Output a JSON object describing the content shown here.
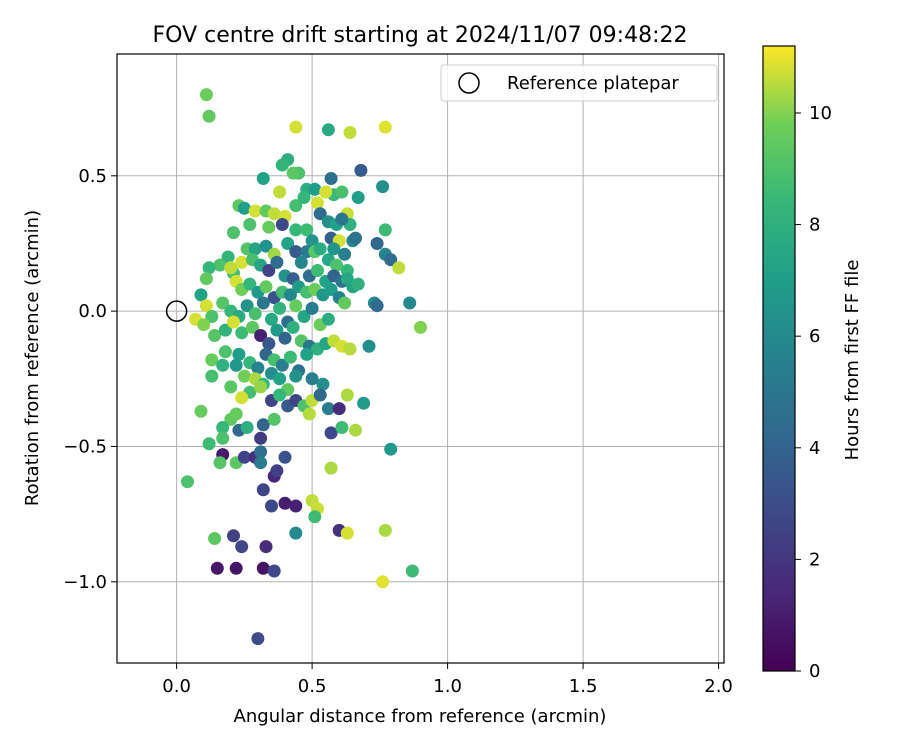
{
  "chart_data": {
    "type": "scatter",
    "title": "FOV centre drift starting at 2024/11/07 09:48:22",
    "xlabel": "Angular distance from reference (arcmin)",
    "ylabel": "Rotation from reference (arcmin)",
    "xlim": [
      -0.22,
      2.02
    ],
    "ylim": [
      -1.3,
      0.95
    ],
    "xticks": [
      0.0,
      0.5,
      1.0,
      1.5,
      2.0
    ],
    "xtick_labels": [
      "0.0",
      "0.5",
      "1.0",
      "1.5",
      "2.0"
    ],
    "yticks": [
      -1.0,
      -0.5,
      0.0,
      0.5
    ],
    "ytick_labels": [
      "−1.0",
      "−0.5",
      "0.0",
      "0.5"
    ],
    "grid": true,
    "legend": {
      "position": "top-right",
      "entries": [
        "Reference platepar"
      ]
    },
    "reference_point": {
      "x": 0.0,
      "y": 0.0,
      "label": "Reference platepar",
      "marker": "open-circle"
    },
    "colorbar": {
      "label": "Hours from first FF file",
      "range": [
        0,
        11.2
      ],
      "ticks": [
        0,
        2,
        4,
        6,
        8,
        10
      ],
      "tick_labels": [
        "0",
        "2",
        "4",
        "6",
        "8",
        "10"
      ],
      "colormap": "viridis"
    },
    "series": [
      {
        "columns": [
          "x",
          "y",
          "hours"
        ],
        "points": [
          [
            0.11,
            0.8,
            9.7
          ],
          [
            0.12,
            0.72,
            9.5
          ],
          [
            0.44,
            0.68,
            10.8
          ],
          [
            0.56,
            0.67,
            7.6
          ],
          [
            0.64,
            0.66,
            10.6
          ],
          [
            0.77,
            0.68,
            10.9
          ],
          [
            0.41,
            0.56,
            7.9
          ],
          [
            0.45,
            0.51,
            9.0
          ],
          [
            0.39,
            0.54,
            8.3
          ],
          [
            0.32,
            0.49,
            7.2
          ],
          [
            0.38,
            0.44,
            10.6
          ],
          [
            0.48,
            0.45,
            7.8
          ],
          [
            0.51,
            0.45,
            7.0
          ],
          [
            0.58,
            0.43,
            8.5
          ],
          [
            0.61,
            0.44,
            8.9
          ],
          [
            0.67,
            0.42,
            7.0
          ],
          [
            0.68,
            0.52,
            3.6
          ],
          [
            0.57,
            0.49,
            4.6
          ],
          [
            0.76,
            0.46,
            6.3
          ],
          [
            0.43,
            0.51,
            9.3
          ],
          [
            0.23,
            0.39,
            9.4
          ],
          [
            0.25,
            0.38,
            7.0
          ],
          [
            0.29,
            0.37,
            10.8
          ],
          [
            0.33,
            0.37,
            9.5
          ],
          [
            0.36,
            0.36,
            10.6
          ],
          [
            0.4,
            0.35,
            10.8
          ],
          [
            0.44,
            0.39,
            8.8
          ],
          [
            0.47,
            0.42,
            8.4
          ],
          [
            0.52,
            0.4,
            10.8
          ],
          [
            0.55,
            0.44,
            10.8
          ],
          [
            0.53,
            0.36,
            4.4
          ],
          [
            0.56,
            0.33,
            6.3
          ],
          [
            0.59,
            0.32,
            7.2
          ],
          [
            0.63,
            0.36,
            10.7
          ],
          [
            0.64,
            0.32,
            8.0
          ],
          [
            0.61,
            0.34,
            5.0
          ],
          [
            0.39,
            0.32,
            2.8
          ],
          [
            0.34,
            0.31,
            9.6
          ],
          [
            0.27,
            0.32,
            9.0
          ],
          [
            0.21,
            0.29,
            9.0
          ],
          [
            0.44,
            0.3,
            8.4
          ],
          [
            0.48,
            0.3,
            8.6
          ],
          [
            0.5,
            0.26,
            6.5
          ],
          [
            0.57,
            0.27,
            3.8
          ],
          [
            0.6,
            0.26,
            10.8
          ],
          [
            0.65,
            0.26,
            5.8
          ],
          [
            0.66,
            0.27,
            4.8
          ],
          [
            0.74,
            0.25,
            4.2
          ],
          [
            0.77,
            0.3,
            8.6
          ],
          [
            0.77,
            0.21,
            5.8
          ],
          [
            0.79,
            0.19,
            4.4
          ],
          [
            0.82,
            0.16,
            10.6
          ],
          [
            0.26,
            0.23,
            9.2
          ],
          [
            0.29,
            0.23,
            7.4
          ],
          [
            0.33,
            0.24,
            6.5
          ],
          [
            0.36,
            0.21,
            10.3
          ],
          [
            0.41,
            0.25,
            7.2
          ],
          [
            0.44,
            0.22,
            3.6
          ],
          [
            0.48,
            0.22,
            5.2
          ],
          [
            0.51,
            0.22,
            9.3
          ],
          [
            0.53,
            0.23,
            7.8
          ],
          [
            0.58,
            0.23,
            6.6
          ],
          [
            0.62,
            0.21,
            5.4
          ],
          [
            0.56,
            0.19,
            7.5
          ],
          [
            0.59,
            0.17,
            9.0
          ],
          [
            0.63,
            0.15,
            8.4
          ],
          [
            0.19,
            0.2,
            8.3
          ],
          [
            0.16,
            0.17,
            9.0
          ],
          [
            0.12,
            0.16,
            8.4
          ],
          [
            0.11,
            0.12,
            9.5
          ],
          [
            0.21,
            0.14,
            8.8
          ],
          [
            0.24,
            0.18,
            10.8
          ],
          [
            0.28,
            0.19,
            8.9
          ],
          [
            0.31,
            0.17,
            7.4
          ],
          [
            0.34,
            0.15,
            2.6
          ],
          [
            0.37,
            0.18,
            4.4
          ],
          [
            0.4,
            0.13,
            6.5
          ],
          [
            0.43,
            0.12,
            3.8
          ],
          [
            0.46,
            0.18,
            5.8
          ],
          [
            0.49,
            0.13,
            4.4
          ],
          [
            0.52,
            0.15,
            8.6
          ],
          [
            0.55,
            0.11,
            7.2
          ],
          [
            0.58,
            0.13,
            4.0
          ],
          [
            0.61,
            0.11,
            4.8
          ],
          [
            0.63,
            0.12,
            7.6
          ],
          [
            0.65,
            0.09,
            7.4
          ],
          [
            0.67,
            0.1,
            8.0
          ],
          [
            0.2,
            0.16,
            10.6
          ],
          [
            0.22,
            0.11,
            10.8
          ],
          [
            0.24,
            0.08,
            9.8
          ],
          [
            0.27,
            0.1,
            8.4
          ],
          [
            0.3,
            0.07,
            6.8
          ],
          [
            0.33,
            0.09,
            9.5
          ],
          [
            0.36,
            0.05,
            3.3
          ],
          [
            0.39,
            0.07,
            8.7
          ],
          [
            0.42,
            0.06,
            5.8
          ],
          [
            0.45,
            0.09,
            6.9
          ],
          [
            0.48,
            0.07,
            8.8
          ],
          [
            0.51,
            0.08,
            9.7
          ],
          [
            0.54,
            0.06,
            6.6
          ],
          [
            0.57,
            0.08,
            7.0
          ],
          [
            0.6,
            0.05,
            5.6
          ],
          [
            0.62,
            0.03,
            9.5
          ],
          [
            0.73,
            0.03,
            6.0
          ],
          [
            0.74,
            0.02,
            4.4
          ],
          [
            0.86,
            0.03,
            6.0
          ],
          [
            0.9,
            -0.06,
            10.0
          ],
          [
            0.09,
            0.06,
            7.2
          ],
          [
            0.11,
            0.02,
            10.8
          ],
          [
            0.13,
            -0.02,
            9.0
          ],
          [
            0.17,
            0.03,
            9.2
          ],
          [
            0.2,
            0.0,
            8.4
          ],
          [
            0.23,
            -0.02,
            7.6
          ],
          [
            0.26,
            0.02,
            6.4
          ],
          [
            0.29,
            -0.01,
            8.9
          ],
          [
            0.32,
            0.03,
            5.0
          ],
          [
            0.35,
            -0.03,
            7.6
          ],
          [
            0.38,
            0.01,
            8.2
          ],
          [
            0.41,
            -0.04,
            4.6
          ],
          [
            0.44,
            0.02,
            9.6
          ],
          [
            0.47,
            -0.02,
            7.4
          ],
          [
            0.5,
            0.01,
            5.2
          ],
          [
            0.53,
            -0.05,
            9.7
          ],
          [
            0.56,
            -0.03,
            7.8
          ],
          [
            0.07,
            -0.03,
            10.8
          ],
          [
            0.1,
            -0.05,
            10.0
          ],
          [
            0.14,
            -0.09,
            9.2
          ],
          [
            0.18,
            -0.07,
            8.2
          ],
          [
            0.21,
            -0.04,
            10.8
          ],
          [
            0.24,
            -0.08,
            8.6
          ],
          [
            0.28,
            -0.06,
            9.4
          ],
          [
            0.31,
            -0.09,
            1.2
          ],
          [
            0.34,
            -0.12,
            3.4
          ],
          [
            0.37,
            -0.07,
            6.8
          ],
          [
            0.4,
            -0.1,
            4.0
          ],
          [
            0.43,
            -0.06,
            8.0
          ],
          [
            0.46,
            -0.11,
            9.2
          ],
          [
            0.49,
            -0.13,
            5.0
          ],
          [
            0.52,
            -0.14,
            8.0
          ],
          [
            0.55,
            -0.12,
            7.4
          ],
          [
            0.58,
            -0.11,
            10.6
          ],
          [
            0.61,
            -0.13,
            10.8
          ],
          [
            0.64,
            -0.14,
            10.5
          ],
          [
            0.71,
            -0.13,
            6.2
          ],
          [
            0.13,
            -0.18,
            9.6
          ],
          [
            0.18,
            -0.15,
            9.0
          ],
          [
            0.23,
            -0.16,
            7.0
          ],
          [
            0.27,
            -0.19,
            8.4
          ],
          [
            0.3,
            -0.21,
            5.6
          ],
          [
            0.33,
            -0.16,
            4.0
          ],
          [
            0.36,
            -0.18,
            8.8
          ],
          [
            0.39,
            -0.2,
            5.4
          ],
          [
            0.42,
            -0.17,
            8.6
          ],
          [
            0.45,
            -0.22,
            4.8
          ],
          [
            0.48,
            -0.16,
            7.2
          ],
          [
            0.13,
            -0.24,
            8.8
          ],
          [
            0.17,
            -0.2,
            8.0
          ],
          [
            0.22,
            -0.2,
            6.6
          ],
          [
            0.25,
            -0.24,
            9.8
          ],
          [
            0.29,
            -0.25,
            10.4
          ],
          [
            0.32,
            -0.27,
            8.4
          ],
          [
            0.35,
            -0.23,
            6.2
          ],
          [
            0.38,
            -0.25,
            7.2
          ],
          [
            0.41,
            -0.29,
            9.4
          ],
          [
            0.44,
            -0.24,
            6.4
          ],
          [
            0.5,
            -0.25,
            5.4
          ],
          [
            0.54,
            -0.27,
            6.2
          ],
          [
            0.2,
            -0.28,
            9.3
          ],
          [
            0.27,
            -0.3,
            8.8
          ],
          [
            0.31,
            -0.28,
            10.2
          ],
          [
            0.35,
            -0.33,
            2.6
          ],
          [
            0.38,
            -0.31,
            8.4
          ],
          [
            0.41,
            -0.35,
            3.6
          ],
          [
            0.44,
            -0.33,
            2.6
          ],
          [
            0.47,
            -0.35,
            9.0
          ],
          [
            0.5,
            -0.33,
            10.6
          ],
          [
            0.53,
            -0.31,
            4.2
          ],
          [
            0.56,
            -0.36,
            5.4
          ],
          [
            0.6,
            -0.36,
            1.6
          ],
          [
            0.63,
            -0.31,
            10.4
          ],
          [
            0.69,
            -0.34,
            6.8
          ],
          [
            0.24,
            -0.32,
            10.8
          ],
          [
            0.09,
            -0.37,
            9.6
          ],
          [
            0.2,
            -0.4,
            9.4
          ],
          [
            0.17,
            -0.43,
            8.4
          ],
          [
            0.22,
            -0.38,
            9.6
          ],
          [
            0.32,
            -0.42,
            4.0
          ],
          [
            0.36,
            -0.4,
            9.2
          ],
          [
            0.49,
            -0.38,
            10.5
          ],
          [
            0.12,
            -0.49,
            8.6
          ],
          [
            0.17,
            -0.47,
            9.0
          ],
          [
            0.23,
            -0.44,
            4.2
          ],
          [
            0.26,
            -0.43,
            8.0
          ],
          [
            0.31,
            -0.47,
            2.2
          ],
          [
            0.57,
            -0.45,
            2.8
          ],
          [
            0.61,
            -0.43,
            8.6
          ],
          [
            0.66,
            -0.44,
            10.4
          ],
          [
            0.79,
            -0.51,
            6.8
          ],
          [
            0.17,
            -0.53,
            0.9
          ],
          [
            0.22,
            -0.56,
            9.4
          ],
          [
            0.25,
            -0.54,
            2.6
          ],
          [
            0.29,
            -0.54,
            1.8
          ],
          [
            0.31,
            -0.52,
            4.6
          ],
          [
            0.31,
            -0.56,
            5.2
          ],
          [
            0.16,
            -0.56,
            9.2
          ],
          [
            0.36,
            -0.61,
            1.4
          ],
          [
            0.37,
            -0.59,
            2.4
          ],
          [
            0.4,
            -0.54,
            3.2
          ],
          [
            0.57,
            -0.58,
            10.4
          ],
          [
            0.04,
            -0.63,
            9.0
          ],
          [
            0.32,
            -0.66,
            2.6
          ],
          [
            0.35,
            -0.72,
            2.8
          ],
          [
            0.4,
            -0.71,
            1.0
          ],
          [
            0.44,
            -0.72,
            1.2
          ],
          [
            0.5,
            -0.7,
            10.6
          ],
          [
            0.52,
            -0.73,
            10.7
          ],
          [
            0.51,
            -0.76,
            8.6
          ],
          [
            0.44,
            -0.82,
            6.0
          ],
          [
            0.6,
            -0.81,
            1.8
          ],
          [
            0.63,
            -0.82,
            10.8
          ],
          [
            0.77,
            -0.81,
            10.4
          ],
          [
            0.14,
            -0.84,
            9.4
          ],
          [
            0.21,
            -0.83,
            2.4
          ],
          [
            0.24,
            -0.87,
            2.8
          ],
          [
            0.33,
            -0.87,
            1.6
          ],
          [
            0.15,
            -0.95,
            0.8
          ],
          [
            0.22,
            -0.95,
            0.7
          ],
          [
            0.32,
            -0.95,
            0.6
          ],
          [
            0.36,
            -0.96,
            2.8
          ],
          [
            0.76,
            -1.0,
            10.9
          ],
          [
            0.87,
            -0.96,
            8.6
          ],
          [
            0.3,
            -1.21,
            3.0
          ]
        ]
      }
    ]
  }
}
